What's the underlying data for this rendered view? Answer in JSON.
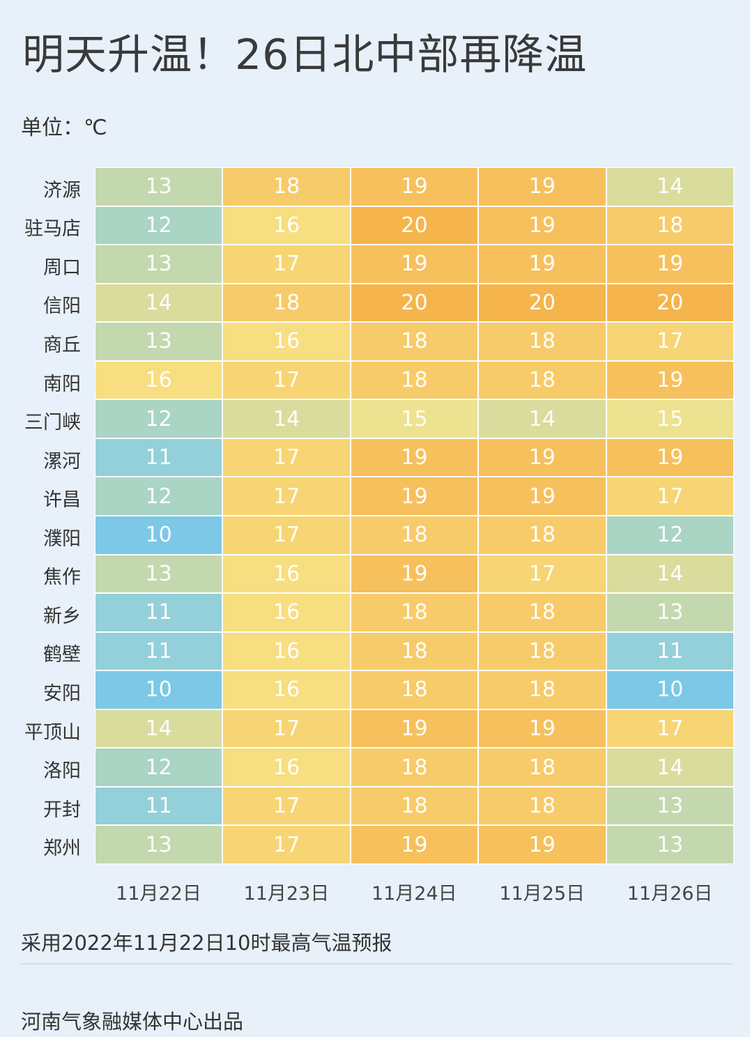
{
  "title": "明天升温！26日北中部再降温",
  "unit": "单位：℃",
  "note": "采用2022年11月22日10时最高气温预报",
  "credit": "河南气象融媒体中心出品",
  "chart_data": {
    "type": "heatmap",
    "title": "明天升温！26日北中部再降温",
    "columns": [
      "11月22日",
      "11月23日",
      "11月24日",
      "11月25日",
      "11月26日"
    ],
    "rows": [
      "济源",
      "驻马店",
      "周口",
      "信阳",
      "商丘",
      "南阳",
      "三门峡",
      "漯河",
      "许昌",
      "濮阳",
      "焦作",
      "新乡",
      "鹤壁",
      "安阳",
      "平顶山",
      "洛阳",
      "开封",
      "郑州"
    ],
    "values": [
      [
        13,
        18,
        19,
        19,
        14
      ],
      [
        12,
        16,
        20,
        19,
        18
      ],
      [
        13,
        17,
        19,
        19,
        19
      ],
      [
        14,
        18,
        20,
        20,
        20
      ],
      [
        13,
        16,
        18,
        18,
        17
      ],
      [
        16,
        17,
        18,
        18,
        19
      ],
      [
        12,
        14,
        15,
        14,
        15
      ],
      [
        11,
        17,
        19,
        19,
        19
      ],
      [
        12,
        17,
        19,
        19,
        17
      ],
      [
        10,
        17,
        18,
        18,
        12
      ],
      [
        13,
        16,
        19,
        17,
        14
      ],
      [
        11,
        16,
        18,
        18,
        13
      ],
      [
        11,
        16,
        18,
        18,
        11
      ],
      [
        10,
        16,
        18,
        18,
        10
      ],
      [
        14,
        17,
        19,
        19,
        17
      ],
      [
        12,
        16,
        18,
        18,
        14
      ],
      [
        11,
        17,
        18,
        18,
        13
      ],
      [
        13,
        17,
        19,
        19,
        13
      ]
    ],
    "color_scale": {
      "10": "#7cc8e6",
      "11": "#94d0da",
      "12": "#aad4c4",
      "13": "#c3d8ae",
      "14": "#d9dc9d",
      "15": "#ece28f",
      "16": "#f7de80",
      "17": "#f7d574",
      "18": "#f7cb69",
      "19": "#f6c05c",
      "20": "#f5b54c"
    }
  }
}
